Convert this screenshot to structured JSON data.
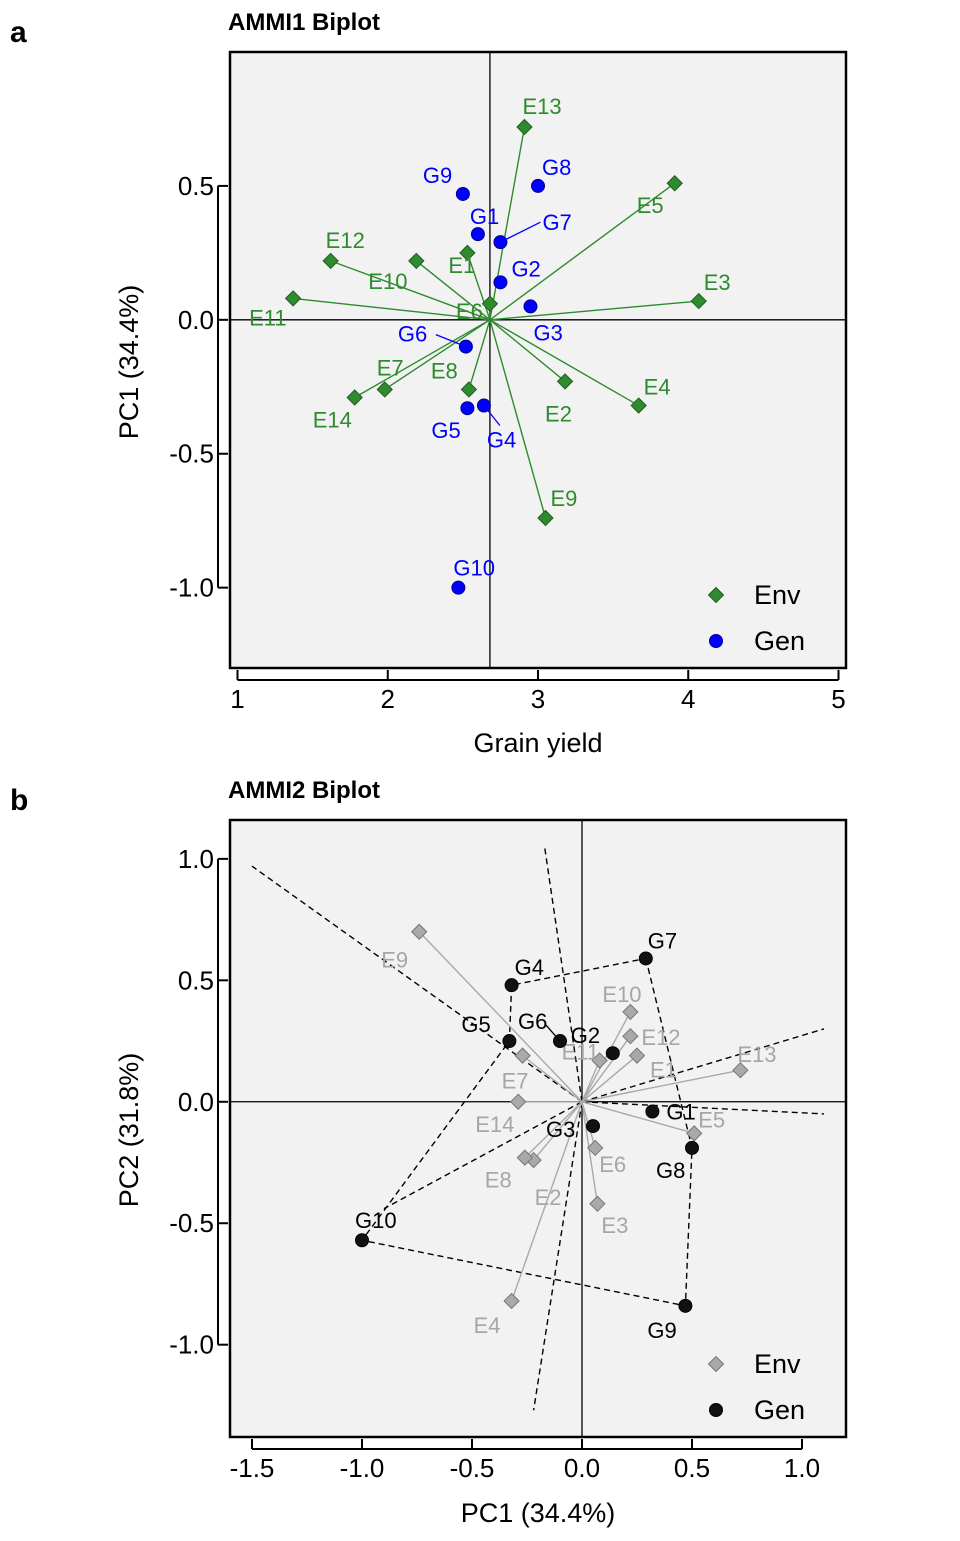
{
  "chart_data": [
    {
      "panel": "a",
      "type": "scatter",
      "title": "AMMI1 Biplot",
      "xlabel": "Grain yield",
      "ylabel": "PC1 (34.4%)",
      "xlim": [
        0.95,
        5.05
      ],
      "ylim": [
        -1.3,
        1.0
      ],
      "xticks": [
        "1",
        "2",
        "3",
        "4",
        "5"
      ],
      "yticks": [
        "0.5",
        "0.0",
        "-0.5",
        "-1.0"
      ],
      "grid": false,
      "legend_position": "bottom-right",
      "origin": {
        "x": 2.68,
        "y": 0.0
      },
      "colors": {
        "env": "#2e8b2e",
        "gen": "#0000ff",
        "panel_bg": "#f2f2f2"
      },
      "series": [
        {
          "name": "Env",
          "marker": "diamond",
          "points": [
            {
              "label": "E1",
              "x": 2.53,
              "y": 0.25
            },
            {
              "label": "E2",
              "x": 3.18,
              "y": -0.23
            },
            {
              "label": "E3",
              "x": 4.07,
              "y": 0.07
            },
            {
              "label": "E4",
              "x": 3.67,
              "y": -0.32
            },
            {
              "label": "E5",
              "x": 3.91,
              "y": 0.51
            },
            {
              "label": "E6",
              "x": 2.68,
              "y": 0.06
            },
            {
              "label": "E7",
              "x": 1.98,
              "y": -0.26
            },
            {
              "label": "E8",
              "x": 2.54,
              "y": -0.26
            },
            {
              "label": "E9",
              "x": 3.05,
              "y": -0.74
            },
            {
              "label": "E10",
              "x": 2.19,
              "y": 0.22
            },
            {
              "label": "E11",
              "x": 1.37,
              "y": 0.08
            },
            {
              "label": "E12",
              "x": 1.62,
              "y": 0.22
            },
            {
              "label": "E13",
              "x": 2.91,
              "y": 0.72
            },
            {
              "label": "E14",
              "x": 1.78,
              "y": -0.29
            }
          ]
        },
        {
          "name": "Gen",
          "marker": "circle",
          "points": [
            {
              "label": "G1",
              "x": 2.6,
              "y": 0.32
            },
            {
              "label": "G2",
              "x": 2.75,
              "y": 0.14
            },
            {
              "label": "G3",
              "x": 2.95,
              "y": 0.05
            },
            {
              "label": "G4",
              "x": 2.64,
              "y": -0.32
            },
            {
              "label": "G5",
              "x": 2.53,
              "y": -0.33
            },
            {
              "label": "G6",
              "x": 2.52,
              "y": -0.1
            },
            {
              "label": "G7",
              "x": 2.75,
              "y": 0.29
            },
            {
              "label": "G8",
              "x": 3.0,
              "y": 0.5
            },
            {
              "label": "G9",
              "x": 2.5,
              "y": 0.47
            },
            {
              "label": "G10",
              "x": 2.47,
              "y": -1.0
            }
          ]
        }
      ]
    },
    {
      "panel": "b",
      "type": "scatter",
      "title": "AMMI2 Biplot",
      "xlabel": "PC1 (34.4%)",
      "ylabel": "PC2 (31.8%)",
      "xlim": [
        -1.6,
        1.2
      ],
      "ylim": [
        -1.38,
        1.16
      ],
      "xticks": [
        "-1.5",
        "-1.0",
        "-0.5",
        "0.0",
        "0.5",
        "1.0"
      ],
      "yticks": [
        "1.0",
        "0.5",
        "0.0",
        "-0.5",
        "-1.0"
      ],
      "grid": false,
      "legend_position": "bottom-right",
      "colors": {
        "env": "#a9a9a9",
        "env_label": "#a6a6a6",
        "gen": "#111111",
        "env_line": "#a9a9a9",
        "panel_bg": "#f2f2f2"
      },
      "series": [
        {
          "name": "Env",
          "marker": "diamond",
          "points": [
            {
              "label": "E1",
              "x": 0.25,
              "y": 0.19
            },
            {
              "label": "E2",
              "x": -0.22,
              "y": -0.24
            },
            {
              "label": "E3",
              "x": 0.07,
              "y": -0.42
            },
            {
              "label": "E4",
              "x": -0.32,
              "y": -0.82
            },
            {
              "label": "E5",
              "x": 0.51,
              "y": -0.13
            },
            {
              "label": "E6",
              "x": 0.06,
              "y": -0.19
            },
            {
              "label": "E7",
              "x": -0.27,
              "y": 0.19
            },
            {
              "label": "E8",
              "x": -0.26,
              "y": -0.23
            },
            {
              "label": "E9",
              "x": -0.74,
              "y": 0.7
            },
            {
              "label": "E10",
              "x": 0.22,
              "y": 0.37
            },
            {
              "label": "E11",
              "x": 0.08,
              "y": 0.17
            },
            {
              "label": "E12",
              "x": 0.22,
              "y": 0.27
            },
            {
              "label": "E13",
              "x": 0.72,
              "y": 0.13
            },
            {
              "label": "E14",
              "x": -0.29,
              "y": 0.0
            }
          ]
        },
        {
          "name": "Gen",
          "marker": "circle",
          "points": [
            {
              "label": "G1",
              "x": 0.32,
              "y": -0.04
            },
            {
              "label": "G2",
              "x": 0.14,
              "y": 0.2
            },
            {
              "label": "G3",
              "x": 0.05,
              "y": -0.1
            },
            {
              "label": "G4",
              "x": -0.32,
              "y": 0.48
            },
            {
              "label": "G5",
              "x": -0.33,
              "y": 0.25
            },
            {
              "label": "G6",
              "x": -0.1,
              "y": 0.25
            },
            {
              "label": "G7",
              "x": 0.29,
              "y": 0.59
            },
            {
              "label": "G8",
              "x": 0.5,
              "y": -0.19
            },
            {
              "label": "G9",
              "x": 0.47,
              "y": -0.84
            },
            {
              "label": "G10",
              "x": -1.0,
              "y": -0.57
            }
          ]
        }
      ],
      "polygon": [
        "G7",
        "G8",
        "G9",
        "G10",
        "G5",
        "G4"
      ],
      "sector_rays": [
        {
          "x": -1.5,
          "y": 0.97
        },
        {
          "x": -0.17,
          "y": 1.05
        },
        {
          "x": 1.1,
          "y": 0.3
        },
        {
          "x": 1.1,
          "y": -0.05
        },
        {
          "x": -0.22,
          "y": -1.27
        },
        {
          "x": -0.9,
          "y": -0.44
        }
      ]
    }
  ],
  "panel_letters": [
    "a",
    "b"
  ]
}
